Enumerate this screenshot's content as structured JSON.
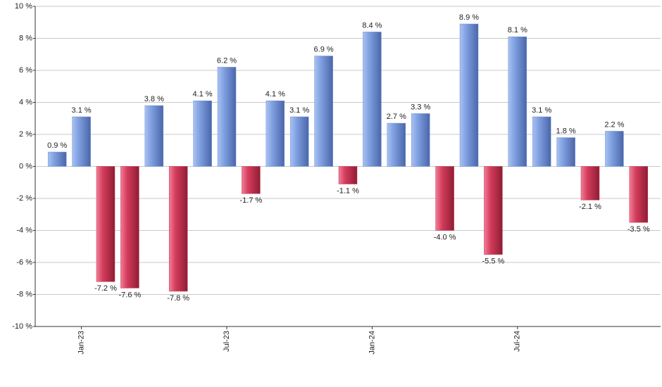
{
  "chart_data": {
    "type": "bar",
    "categories": [
      null,
      "Jan-23",
      null,
      null,
      null,
      null,
      null,
      "Jul-23",
      null,
      null,
      null,
      null,
      null,
      "Jan-24",
      null,
      null,
      null,
      null,
      null,
      "Jul-24",
      null,
      null,
      null,
      null,
      null
    ],
    "values": [
      0.9,
      3.1,
      -7.2,
      -7.6,
      3.8,
      -7.8,
      4.1,
      6.2,
      -1.7,
      4.1,
      3.1,
      6.9,
      -1.1,
      8.4,
      2.7,
      3.3,
      -4.0,
      8.9,
      -5.5,
      8.1,
      3.1,
      1.8,
      -2.1,
      2.2,
      -3.5
    ],
    "value_labels": [
      "0.9 %",
      "3.1 %",
      "-7.2 %",
      "-7.6 %",
      "3.8 %",
      "-7.8 %",
      "4.1 %",
      "6.2 %",
      "-1.7 %",
      "4.1 %",
      "3.1 %",
      "6.9 %",
      "-1.1 %",
      "8.4 %",
      "2.7 %",
      "3.3 %",
      "-4.0 %",
      "8.9 %",
      "-5.5 %",
      "8.1 %",
      "3.1 %",
      "1.8 %",
      "-2.1 %",
      "2.2 %",
      "-3.5 %"
    ],
    "positive_color": "#6f93d8",
    "negative_color": "#c93552",
    "ylim": [
      -10,
      10
    ],
    "yticks": [
      {
        "value": -10,
        "label": "-10 %"
      },
      {
        "value": -8,
        "label": "-8 %"
      },
      {
        "value": -6,
        "label": "-6 %"
      },
      {
        "value": -4,
        "label": "-4 %"
      },
      {
        "value": -2,
        "label": "-2 %"
      },
      {
        "value": 0,
        "label": "0 %"
      },
      {
        "value": 2,
        "label": "2 %"
      },
      {
        "value": 4,
        "label": "4 %"
      },
      {
        "value": 6,
        "label": "6 %"
      },
      {
        "value": 8,
        "label": "8 %"
      },
      {
        "value": 10,
        "label": "10 %"
      }
    ],
    "grid": true
  }
}
